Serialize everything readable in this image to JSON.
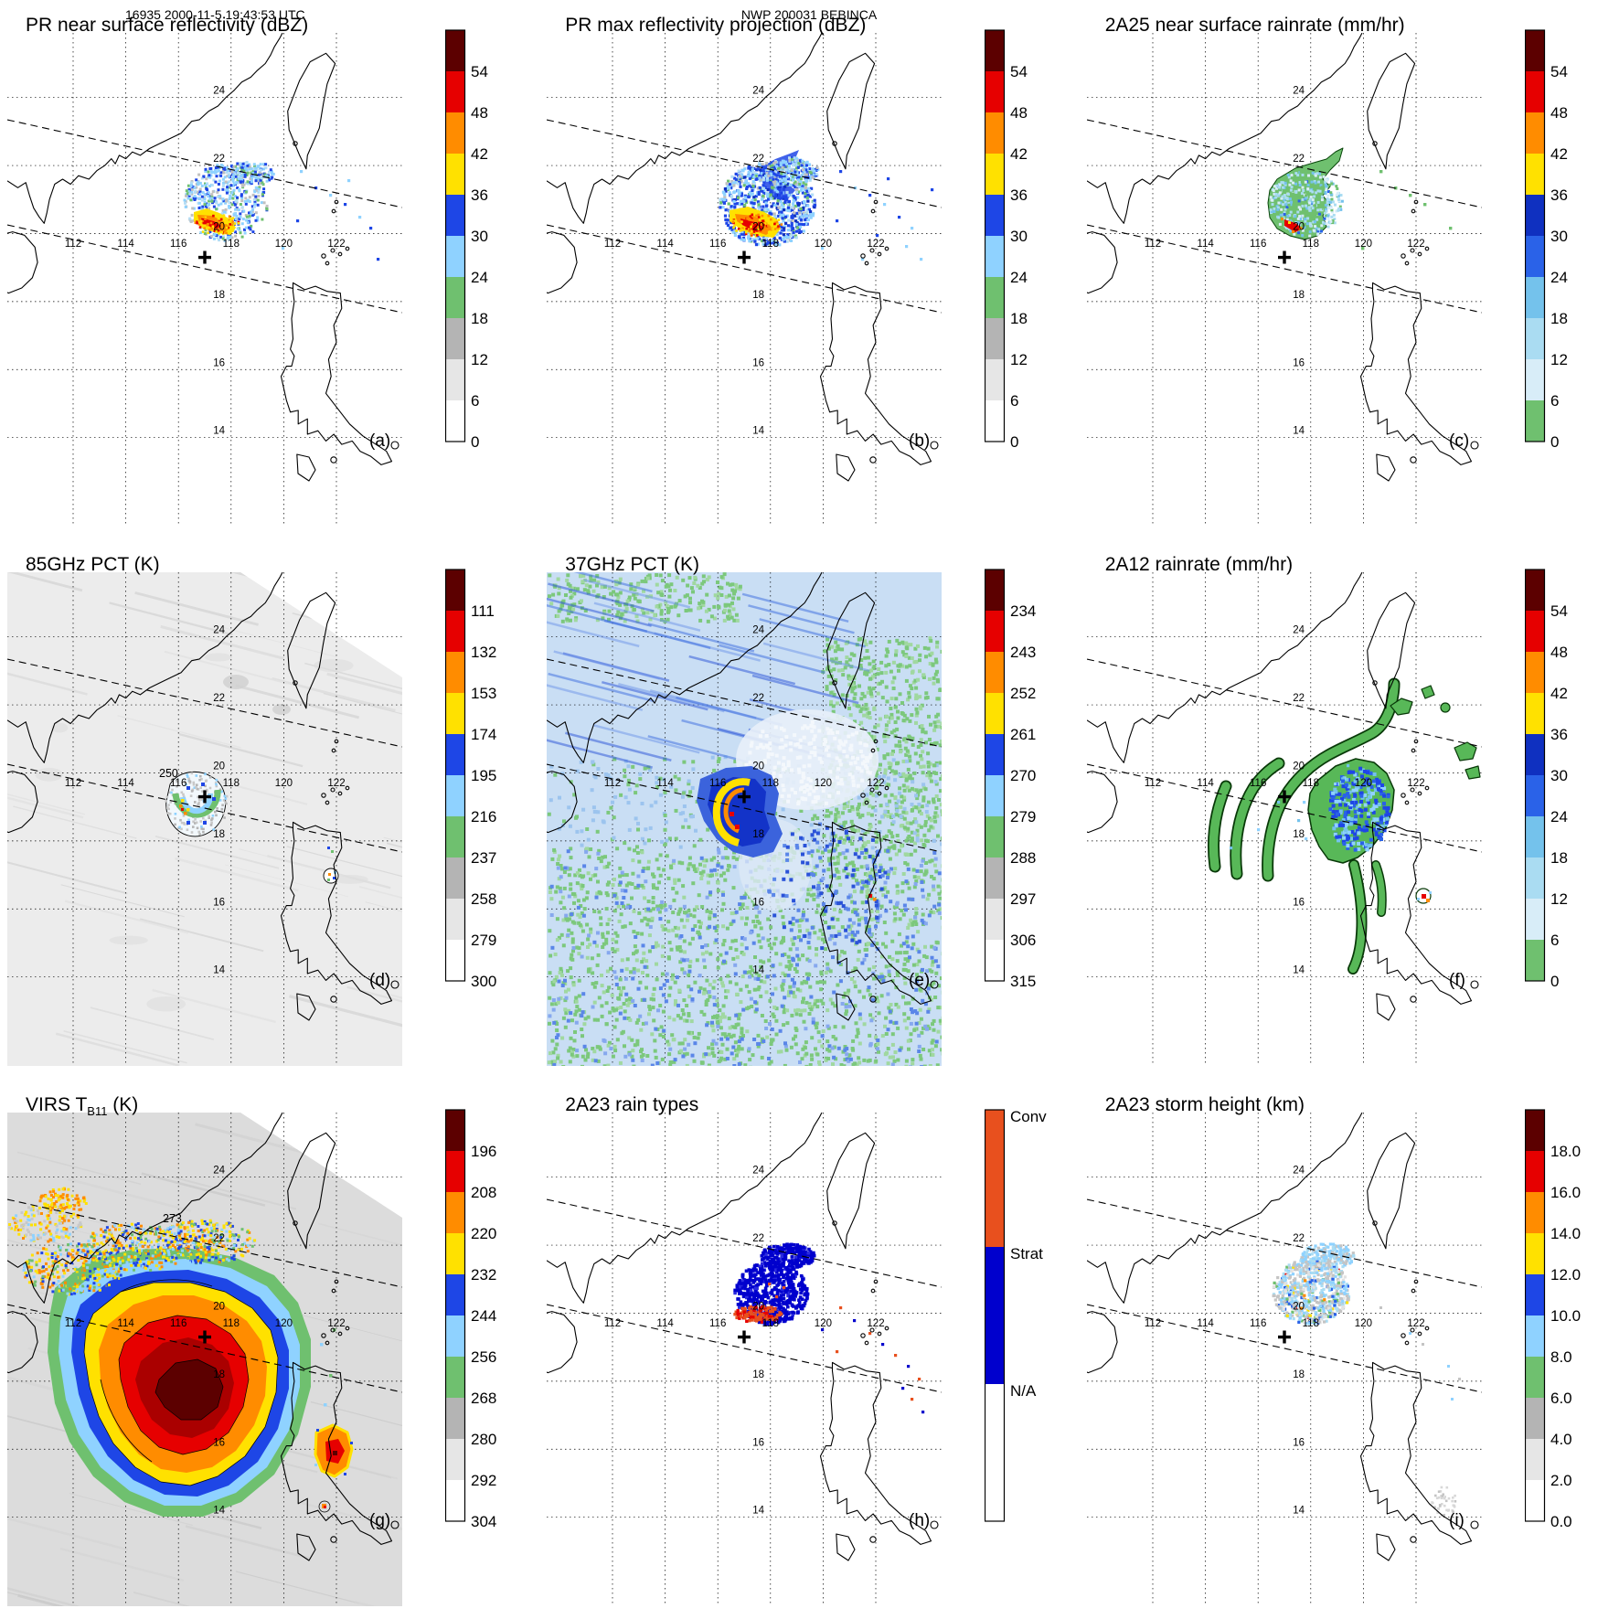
{
  "header": {
    "left": "16935 2000-11-5 19:43:53 UTC",
    "center": "NWP 200031 BEBINCA"
  },
  "map_grid": {
    "lon_labels": [
      "112",
      "114",
      "116",
      "118",
      "120",
      "122"
    ],
    "lon_values": [
      112,
      114,
      116,
      118,
      120,
      122
    ],
    "lat_labels": [
      "24",
      "22",
      "20",
      "18",
      "16",
      "14"
    ],
    "lat_values": [
      24,
      22,
      20,
      18,
      16,
      14
    ],
    "gridline_spacing_deg": 2,
    "storm_center": {
      "lon": 117,
      "lat": 19.3
    }
  },
  "ramps": {
    "reflectivity_dbz": {
      "colors_bottom_to_top": [
        "#ffffff",
        "#e6e6e6",
        "#b4b4b4",
        "#6fc06f",
        "#8fd2ff",
        "#1e46e6",
        "#ffe100",
        "#ff8c00",
        "#e60000",
        "#5c0000"
      ]
    },
    "rainrate_mmhr": {
      "colors_bottom_to_top": [
        "#6fc06f",
        "#d8edf8",
        "#aadcf2",
        "#74c2ec",
        "#2a62e8",
        "#0f30c0",
        "#ffe100",
        "#ff8c00",
        "#e60000",
        "#5c0000"
      ]
    },
    "pct_k": {
      "colors_bottom_to_top": [
        "#ffffff",
        "#e6e6e6",
        "#b4b4b4",
        "#6fc06f",
        "#8fd2ff",
        "#1e46e6",
        "#ffe100",
        "#ff8c00",
        "#e60000",
        "#5c0000"
      ]
    },
    "rain_type": {
      "Conv": "#e8501e",
      "Strat": "#0000cd",
      "N/A": "#ffffff"
    }
  },
  "chart_data": [
    {
      "id": "a",
      "type": "heatmap",
      "title": "PR near surface reflectivity (dBZ)",
      "panel_label": "(a)",
      "units": "dBZ",
      "colorbar": {
        "ramp": "reflectivity_dbz",
        "ticks_top_to_bottom": [
          "54",
          "48",
          "42",
          "36",
          "30",
          "24",
          "18",
          "12",
          "6",
          "0"
        ]
      }
    },
    {
      "id": "b",
      "type": "heatmap",
      "title": "PR max reflectivity projection (dBZ)",
      "panel_label": "(b)",
      "units": "dBZ",
      "colorbar": {
        "ramp": "reflectivity_dbz",
        "ticks_top_to_bottom": [
          "54",
          "48",
          "42",
          "36",
          "30",
          "24",
          "18",
          "12",
          "6",
          "0"
        ]
      }
    },
    {
      "id": "c",
      "type": "heatmap",
      "title": "2A25 near surface rainrate (mm/hr)",
      "panel_label": "(c)",
      "units": "mm/hr",
      "colorbar": {
        "ramp": "rainrate_mmhr",
        "ticks_top_to_bottom": [
          "54",
          "48",
          "42",
          "36",
          "30",
          "24",
          "18",
          "12",
          "6",
          "0"
        ]
      }
    },
    {
      "id": "d",
      "type": "heatmap",
      "title": "85GHz PCT (K)",
      "panel_label": "(d)",
      "units": "K",
      "contour_label": "250",
      "colorbar": {
        "ramp": "pct_k",
        "ticks_top_to_bottom": [
          "111",
          "132",
          "153",
          "174",
          "195",
          "216",
          "237",
          "258",
          "279",
          "300"
        ]
      }
    },
    {
      "id": "e",
      "type": "heatmap",
      "title": "37GHz PCT (K)",
      "panel_label": "(e)",
      "units": "K",
      "colorbar": {
        "ramp": "pct_k",
        "ticks_top_to_bottom": [
          "234",
          "243",
          "252",
          "261",
          "270",
          "279",
          "288",
          "297",
          "306",
          "315"
        ]
      }
    },
    {
      "id": "f",
      "type": "heatmap",
      "title": "2A12 rainrate (mm/hr)",
      "panel_label": "(f)",
      "units": "mm/hr",
      "colorbar": {
        "ramp": "rainrate_mmhr",
        "ticks_top_to_bottom": [
          "54",
          "48",
          "42",
          "36",
          "30",
          "24",
          "18",
          "12",
          "6",
          "0"
        ]
      }
    },
    {
      "id": "g",
      "type": "heatmap",
      "title": "VIRS TB11 (K)",
      "title_parts": {
        "pre": "VIRS T",
        "sub": "B11",
        "post": " (K)"
      },
      "panel_label": "(g)",
      "units": "K",
      "contour_label": "273",
      "colorbar": {
        "ramp": "pct_k",
        "ticks_top_to_bottom": [
          "196",
          "208",
          "220",
          "232",
          "244",
          "256",
          "268",
          "280",
          "292",
          "304"
        ]
      }
    },
    {
      "id": "h",
      "type": "heatmap",
      "title": "2A23 rain types",
      "panel_label": "(h)",
      "colorbar": {
        "ramp": "rain_type",
        "categories_top_to_bottom": [
          "Conv",
          "Strat",
          "N/A"
        ]
      }
    },
    {
      "id": "i",
      "type": "heatmap",
      "title": "2A23 storm height (km)",
      "panel_label": "(i)",
      "units": "km",
      "colorbar": {
        "ramp": "pct_k",
        "ticks_top_to_bottom": [
          "18.0",
          "16.0",
          "14.0",
          "12.0",
          "10.0",
          "8.0",
          "6.0",
          "4.0",
          "2.0",
          "0.0"
        ]
      }
    }
  ]
}
